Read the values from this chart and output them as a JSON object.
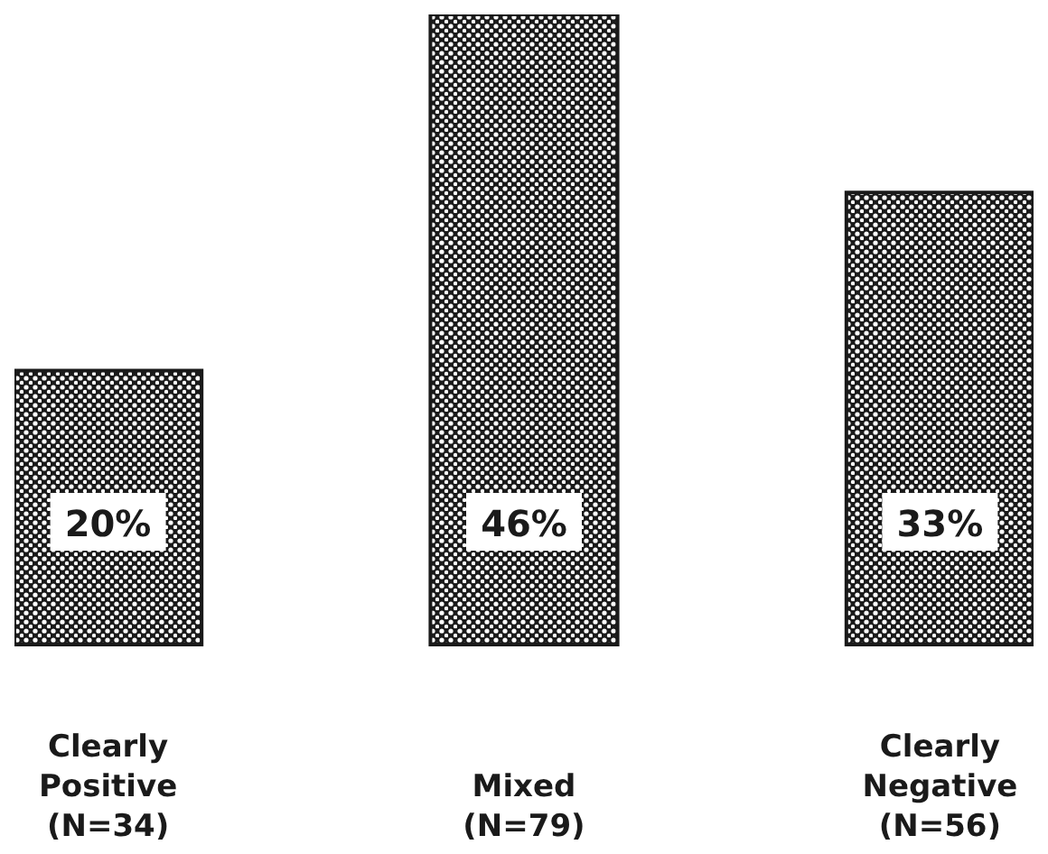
{
  "chart_data": {
    "type": "bar",
    "categories": [
      "Clearly\nPositive\n(N=34)",
      "Mixed\n(N=79)",
      "Clearly\nNegative\n(N=56)"
    ],
    "values": [
      20,
      46,
      33
    ],
    "color": "#1a1a1a",
    "value_labels": [
      "20%",
      "46%",
      "33%"
    ]
  }
}
